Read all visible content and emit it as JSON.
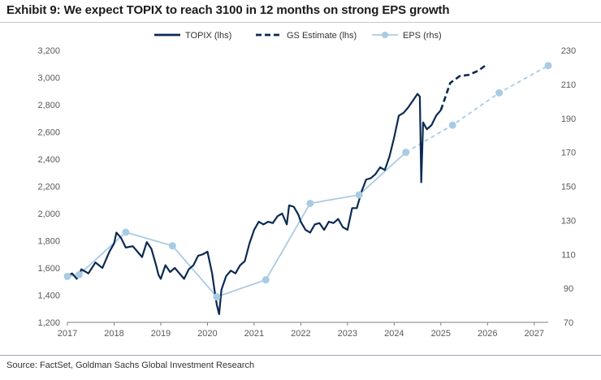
{
  "title": "Exhibit 9: We expect TOPIX to reach 3100 in 12 months on strong EPS growth",
  "source": "Source: FactSet, Goldman Sachs Global Investment Research",
  "colors": {
    "topix": "#0b2a52",
    "estimate": "#0b2a52",
    "eps": "#a9cbe4",
    "axis": "#7f7f7f"
  },
  "chart_data": {
    "type": "line",
    "legend": [
      "TOPIX (lhs)",
      "GS Estimate (lhs)",
      "EPS (rhs)"
    ],
    "legend_position": "top-center",
    "x_ticks": [
      "2017",
      "2018",
      "2019",
      "2020",
      "2021",
      "2022",
      "2023",
      "2024",
      "2025",
      "2026",
      "2027"
    ],
    "x_range": [
      2017,
      2027.3
    ],
    "y_left_ticks": [
      "1,200",
      "1,400",
      "1,600",
      "1,800",
      "2,000",
      "2,200",
      "2,400",
      "2,600",
      "2,800",
      "3,000",
      "3,200"
    ],
    "y_left_range": [
      1200,
      3200
    ],
    "y_right_ticks": [
      "70",
      "90",
      "110",
      "130",
      "150",
      "170",
      "190",
      "210",
      "230"
    ],
    "y_right_range": [
      70,
      230
    ],
    "series": [
      {
        "name": "TOPIX (lhs)",
        "axis": "left",
        "style": "solid",
        "x": [
          2017.0,
          2017.1,
          2017.2,
          2017.3,
          2017.45,
          2017.6,
          2017.75,
          2017.9,
          2018.0,
          2018.05,
          2018.15,
          2018.25,
          2018.4,
          2018.5,
          2018.6,
          2018.7,
          2018.8,
          2018.9,
          2018.95,
          2019.0,
          2019.1,
          2019.2,
          2019.3,
          2019.4,
          2019.5,
          2019.6,
          2019.7,
          2019.8,
          2019.9,
          2020.0,
          2020.1,
          2020.15,
          2020.2,
          2020.25,
          2020.3,
          2020.4,
          2020.5,
          2020.6,
          2020.7,
          2020.8,
          2020.9,
          2021.0,
          2021.1,
          2021.2,
          2021.3,
          2021.4,
          2021.5,
          2021.6,
          2021.7,
          2021.75,
          2021.85,
          2021.95,
          2022.0,
          2022.1,
          2022.2,
          2022.3,
          2022.4,
          2022.5,
          2022.6,
          2022.7,
          2022.8,
          2022.9,
          2023.0,
          2023.1,
          2023.2,
          2023.3,
          2023.4,
          2023.5,
          2023.6,
          2023.7,
          2023.8,
          2023.9,
          2024.0,
          2024.1,
          2024.2,
          2024.3,
          2024.4,
          2024.5,
          2024.55,
          2024.58,
          2024.62,
          2024.7,
          2024.8,
          2024.9,
          2025.0
        ],
        "y": [
          1540,
          1560,
          1520,
          1590,
          1560,
          1640,
          1600,
          1720,
          1780,
          1860,
          1820,
          1750,
          1760,
          1720,
          1680,
          1790,
          1740,
          1620,
          1550,
          1520,
          1620,
          1570,
          1600,
          1560,
          1520,
          1590,
          1620,
          1690,
          1700,
          1720,
          1560,
          1440,
          1330,
          1260,
          1440,
          1540,
          1580,
          1560,
          1620,
          1650,
          1780,
          1880,
          1940,
          1920,
          1940,
          1930,
          1980,
          2000,
          1920,
          2060,
          2050,
          1990,
          1940,
          1880,
          1860,
          1920,
          1930,
          1880,
          1940,
          1930,
          1960,
          1900,
          1880,
          2040,
          2040,
          2160,
          2250,
          2260,
          2290,
          2340,
          2320,
          2420,
          2560,
          2720,
          2740,
          2780,
          2830,
          2880,
          2860,
          2230,
          2670,
          2620,
          2650,
          2720,
          2760
        ]
      },
      {
        "name": "GS Estimate (lhs)",
        "axis": "left",
        "style": "dashed",
        "x": [
          2025.0,
          2025.2,
          2025.4,
          2025.6,
          2025.8,
          2026.0
        ],
        "y": [
          2760,
          2960,
          3010,
          3020,
          3050,
          3100
        ]
      },
      {
        "name": "EPS (rhs)",
        "axis": "right",
        "style": "solid-then-dashed",
        "dashed_from_x": 2024.6,
        "x": [
          2017.0,
          2017.25,
          2018.25,
          2019.25,
          2020.2,
          2021.25,
          2022.2,
          2023.25,
          2024.25,
          2025.25,
          2026.25,
          2027.3
        ],
        "y": [
          97,
          98,
          123,
          115,
          85,
          95,
          140,
          145,
          170,
          186,
          205,
          221
        ]
      }
    ]
  }
}
